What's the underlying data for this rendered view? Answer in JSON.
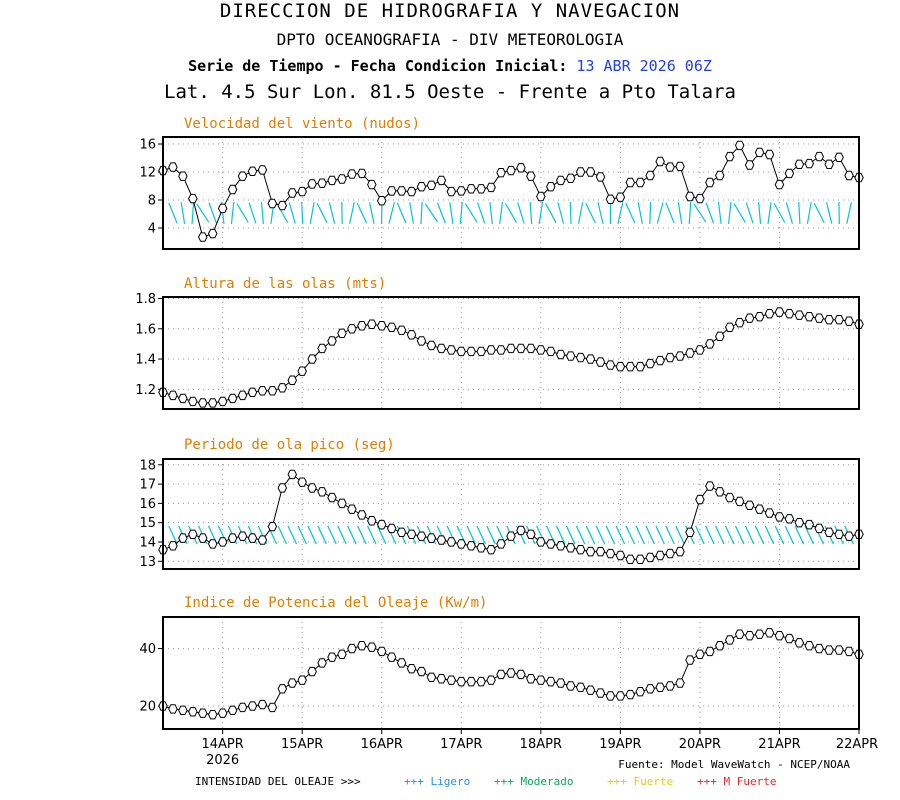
{
  "header": {
    "line1": "DIRECCION DE HIDROGRAFIA Y NAVEGACION",
    "line2": "DPTO OCEANOGRAFIA - DIV METEOROLOGIA",
    "line3_prefix": "Serie de Tiempo - Fecha Condicion Inicial:",
    "line3_date": "13 ABR 2026 06Z",
    "line4": "Lat. 4.5 Sur  Lon. 81.5 Oeste - Frente a Pto Talara"
  },
  "colors": {
    "title": "#e87a00",
    "arrow": "#00c8d2",
    "grid": "#9a9a9a",
    "ligero": "#1e90ff",
    "moderado": "#00b050",
    "fuerte": "#e0d000",
    "mfuerte": "#ff2020"
  },
  "x_axis": {
    "ticks": [
      "14APR",
      "15APR",
      "16APR",
      "17APR",
      "18APR",
      "19APR",
      "20APR",
      "21APR",
      "22APR"
    ],
    "year": "2026",
    "start_day": 13.25,
    "end_day": 22.0
  },
  "footer": {
    "source": "Fuente: Model WaveWatch - NCEP/NOAA",
    "legend_label": "INTENSIDAD DEL OLEAJE >>>",
    "items": [
      {
        "text": "+++ Ligero",
        "color": "#1e90ff"
      },
      {
        "text": "+++ Moderado",
        "color": "#00b050"
      },
      {
        "text": "+++ Fuerte",
        "color": "#e0d000"
      },
      {
        "text": "+++ M Fuerte",
        "color": "#ff2020"
      }
    ]
  },
  "chart_data": [
    {
      "type": "line",
      "title": "Velocidad del viento (nudos)",
      "yticks": [
        4,
        8,
        12,
        16
      ],
      "ylim": [
        1,
        17
      ],
      "arrows": true,
      "values": [
        12.2,
        12.7,
        11.4,
        8.2,
        2.7,
        3.2,
        6.8,
        9.5,
        11.4,
        12.1,
        12.3,
        7.5,
        7.2,
        9.0,
        9.2,
        10.3,
        10.4,
        10.8,
        11.0,
        11.7,
        11.8,
        10.2,
        7.9,
        9.3,
        9.3,
        9.2,
        9.9,
        10.1,
        10.8,
        9.2,
        9.3,
        9.6,
        9.6,
        9.8,
        11.9,
        12.2,
        12.6,
        11.4,
        8.5,
        9.9,
        10.8,
        11.1,
        12.0,
        12.0,
        11.3,
        8.1,
        8.4,
        10.5,
        10.5,
        11.5,
        13.5,
        12.7,
        12.8,
        8.5,
        8.2,
        10.5,
        11.5,
        14.2,
        15.8,
        13.0,
        14.8,
        14.5,
        10.2,
        11.8,
        13.1,
        13.2,
        14.2,
        13.1,
        14.1,
        11.5,
        11.2
      ]
    },
    {
      "type": "line",
      "title": "Altura de las olas (mts)",
      "yticks": [
        1.2,
        1.4,
        1.6,
        1.8
      ],
      "ylim": [
        1.07,
        1.81
      ],
      "values": [
        1.18,
        1.16,
        1.14,
        1.12,
        1.11,
        1.11,
        1.12,
        1.14,
        1.16,
        1.18,
        1.19,
        1.19,
        1.21,
        1.26,
        1.32,
        1.4,
        1.47,
        1.52,
        1.57,
        1.6,
        1.62,
        1.63,
        1.62,
        1.61,
        1.59,
        1.56,
        1.52,
        1.49,
        1.47,
        1.46,
        1.45,
        1.45,
        1.45,
        1.46,
        1.46,
        1.47,
        1.47,
        1.47,
        1.46,
        1.45,
        1.43,
        1.42,
        1.41,
        1.4,
        1.38,
        1.36,
        1.35,
        1.35,
        1.35,
        1.37,
        1.39,
        1.41,
        1.42,
        1.44,
        1.46,
        1.5,
        1.55,
        1.61,
        1.64,
        1.67,
        1.68,
        1.7,
        1.71,
        1.7,
        1.69,
        1.68,
        1.67,
        1.66,
        1.66,
        1.65,
        1.63
      ]
    },
    {
      "type": "line",
      "title": "Periodo de ola pico (seg)",
      "yticks": [
        13,
        14,
        15,
        16,
        17,
        18
      ],
      "ylim": [
        12.6,
        18.3
      ],
      "arrows": true,
      "values": [
        13.6,
        13.8,
        14.2,
        14.4,
        14.2,
        13.9,
        14.0,
        14.2,
        14.3,
        14.2,
        14.1,
        14.8,
        16.8,
        17.5,
        17.1,
        16.8,
        16.6,
        16.3,
        16.0,
        15.7,
        15.4,
        15.1,
        14.9,
        14.7,
        14.5,
        14.4,
        14.3,
        14.2,
        14.1,
        14.0,
        13.9,
        13.8,
        13.7,
        13.6,
        13.9,
        14.3,
        14.6,
        14.4,
        14.0,
        13.9,
        13.8,
        13.7,
        13.6,
        13.5,
        13.5,
        13.4,
        13.3,
        13.1,
        13.1,
        13.2,
        13.3,
        13.4,
        13.5,
        14.5,
        16.2,
        16.9,
        16.6,
        16.3,
        16.1,
        15.9,
        15.7,
        15.5,
        15.3,
        15.2,
        15.0,
        14.9,
        14.7,
        14.5,
        14.4,
        14.3,
        14.4
      ]
    },
    {
      "type": "line",
      "title": "Indice de Potencia del Oleaje (Kw/m)",
      "yticks": [
        20,
        40
      ],
      "ylim": [
        12,
        51
      ],
      "values": [
        20,
        19,
        18.5,
        18,
        17.5,
        17,
        17.5,
        18.5,
        19.5,
        20,
        20.5,
        19.5,
        26,
        28,
        29,
        32,
        35,
        37,
        38,
        40,
        41,
        40.5,
        39,
        37,
        35,
        33,
        32,
        30,
        29.5,
        29,
        28.5,
        28.5,
        28.5,
        29,
        31,
        31.5,
        31,
        29.5,
        29,
        28.5,
        28,
        27,
        26.5,
        25.5,
        24.5,
        23.5,
        23.5,
        24,
        25,
        26,
        26.5,
        27,
        28,
        36,
        38,
        39,
        41,
        43,
        45,
        44.5,
        45,
        45.5,
        44.5,
        43.5,
        42,
        41,
        40,
        39.5,
        39.5,
        39,
        38
      ]
    }
  ]
}
